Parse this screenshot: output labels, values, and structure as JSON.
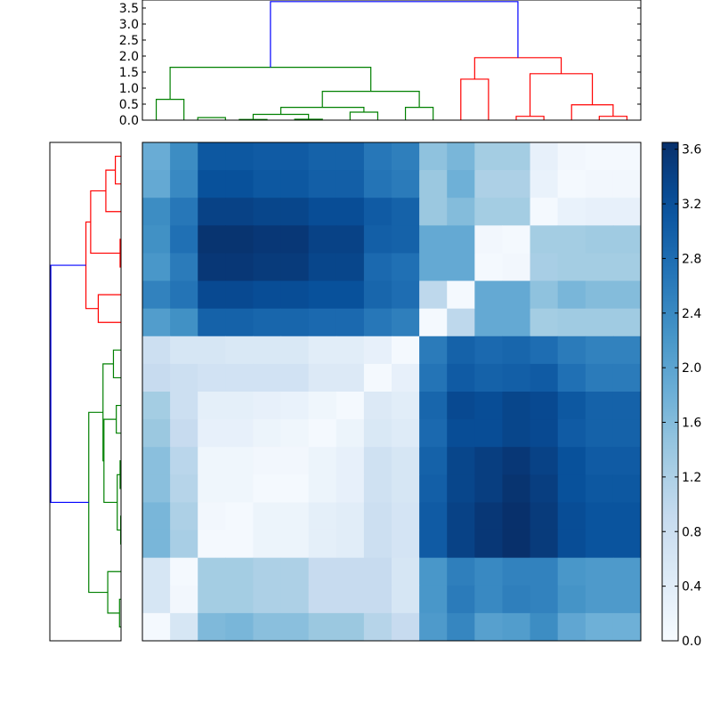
{
  "chart_data": {
    "type": "heatmap",
    "title": "",
    "xlabel": "",
    "ylabel": "",
    "colormap": "Blues",
    "n_rows": 18,
    "n_cols": 18,
    "values": [
      [
        1.85,
        2.35,
        3.1,
        3.1,
        3.05,
        3.05,
        2.95,
        2.95,
        2.65,
        2.55,
        1.5,
        1.7,
        1.3,
        1.3,
        0.3,
        0.1,
        0.05,
        0.05
      ],
      [
        1.9,
        2.4,
        3.2,
        3.2,
        3.1,
        3.1,
        3.0,
        3.0,
        2.7,
        2.6,
        1.4,
        1.8,
        1.2,
        1.2,
        0.25,
        0.05,
        0.1,
        0.1
      ],
      [
        2.35,
        2.65,
        3.4,
        3.4,
        3.35,
        3.35,
        3.25,
        3.25,
        3.05,
        2.95,
        1.4,
        1.6,
        1.3,
        1.3,
        0.05,
        0.25,
        0.3,
        0.3
      ],
      [
        2.3,
        2.75,
        3.6,
        3.6,
        3.55,
        3.55,
        3.4,
        3.4,
        3.0,
        2.95,
        1.9,
        1.9,
        0.1,
        0.05,
        1.3,
        1.3,
        1.35,
        1.35
      ],
      [
        2.2,
        2.6,
        3.55,
        3.55,
        3.5,
        3.5,
        3.35,
        3.35,
        2.85,
        2.75,
        1.9,
        1.9,
        0.05,
        0.1,
        1.25,
        1.3,
        1.3,
        1.3
      ],
      [
        2.5,
        2.7,
        3.3,
        3.3,
        3.25,
        3.25,
        3.2,
        3.2,
        2.9,
        2.8,
        1.0,
        0.05,
        1.9,
        1.9,
        1.5,
        1.7,
        1.6,
        1.6
      ],
      [
        2.1,
        2.3,
        2.95,
        2.95,
        2.9,
        2.9,
        2.85,
        2.85,
        2.65,
        2.55,
        0.05,
        1.0,
        1.9,
        1.9,
        1.3,
        1.35,
        1.35,
        1.35
      ],
      [
        0.8,
        0.6,
        0.6,
        0.55,
        0.55,
        0.55,
        0.4,
        0.4,
        0.3,
        0.05,
        2.6,
        2.95,
        2.85,
        2.9,
        2.8,
        2.6,
        2.5,
        2.5
      ],
      [
        0.9,
        0.8,
        0.7,
        0.7,
        0.7,
        0.7,
        0.5,
        0.5,
        0.05,
        0.3,
        2.7,
        3.05,
        2.95,
        3.0,
        3.05,
        2.75,
        2.6,
        2.6
      ],
      [
        1.3,
        0.8,
        0.35,
        0.35,
        0.3,
        0.25,
        0.15,
        0.05,
        0.5,
        0.4,
        2.9,
        3.3,
        3.25,
        3.35,
        3.3,
        3.1,
        2.95,
        2.95
      ],
      [
        1.4,
        0.9,
        0.3,
        0.3,
        0.2,
        0.15,
        0.05,
        0.2,
        0.55,
        0.45,
        2.85,
        3.25,
        3.25,
        3.35,
        3.3,
        3.05,
        2.95,
        2.95
      ],
      [
        1.55,
        1.05,
        0.15,
        0.15,
        0.1,
        0.1,
        0.2,
        0.3,
        0.75,
        0.6,
        2.95,
        3.35,
        3.45,
        3.55,
        3.4,
        3.2,
        3.05,
        3.05
      ],
      [
        1.55,
        1.1,
        0.15,
        0.15,
        0.05,
        0.05,
        0.2,
        0.3,
        0.75,
        0.6,
        3.0,
        3.35,
        3.45,
        3.6,
        3.45,
        3.2,
        3.1,
        3.1
      ],
      [
        1.7,
        1.2,
        0.1,
        0.05,
        0.2,
        0.2,
        0.35,
        0.4,
        0.8,
        0.65,
        3.05,
        3.4,
        3.55,
        3.65,
        3.5,
        3.25,
        3.15,
        3.15
      ],
      [
        1.7,
        1.25,
        0.05,
        0.05,
        0.2,
        0.2,
        0.35,
        0.4,
        0.8,
        0.65,
        3.05,
        3.4,
        3.55,
        3.65,
        3.5,
        3.25,
        3.15,
        3.15
      ],
      [
        0.6,
        0.05,
        1.3,
        1.3,
        1.2,
        1.2,
        0.9,
        0.9,
        0.9,
        0.6,
        2.2,
        2.55,
        2.4,
        2.5,
        2.5,
        2.2,
        2.15,
        2.15
      ],
      [
        0.6,
        0.1,
        1.3,
        1.3,
        1.2,
        1.2,
        0.9,
        0.9,
        0.9,
        0.6,
        2.2,
        2.6,
        2.4,
        2.55,
        2.5,
        2.25,
        2.15,
        2.15
      ],
      [
        0.05,
        0.6,
        1.65,
        1.7,
        1.55,
        1.55,
        1.4,
        1.4,
        1.1,
        0.9,
        2.15,
        2.45,
        2.05,
        2.1,
        2.35,
        1.95,
        1.8,
        1.8
      ]
    ],
    "colorbar": {
      "vmin": 0.0,
      "vmax": 3.65,
      "ticks": [
        "0.0",
        "0.4",
        "0.8",
        "1.2",
        "1.6",
        "2.0",
        "2.4",
        "2.8",
        "3.2",
        "3.6"
      ],
      "tick_values": [
        0.0,
        0.4,
        0.8,
        1.2,
        1.6,
        2.0,
        2.4,
        2.8,
        3.2,
        3.6
      ]
    },
    "top_dendrogram": {
      "orientation": "top",
      "ylim": [
        0,
        3.75
      ],
      "y_ticks": [
        "0.0",
        "0.5",
        "1.0",
        "1.5",
        "2.0",
        "2.5",
        "3.0",
        "3.5"
      ],
      "y_tick_values": [
        0.0,
        0.5,
        1.0,
        1.5,
        2.0,
        2.5,
        3.0,
        3.5
      ],
      "links": [
        {
          "color": "#008000",
          "x1": 0.5,
          "x2": 1.5,
          "h": 0.65,
          "y1": 0,
          "y2": 0
        },
        {
          "color": "#008000",
          "x1": 2.0,
          "x2": 3.0,
          "h": 0.08,
          "y1": 0,
          "y2": 0
        },
        {
          "color": "#008000",
          "x1": 3.5,
          "x2": 4.5,
          "h": 0.02,
          "y1": 0,
          "y2": 0
        },
        {
          "color": "#008000",
          "x1": 4.0,
          "x2": 6.0,
          "h": 0.18,
          "y1": 0.02,
          "y2": 0
        },
        {
          "color": "#008000",
          "x1": 5.5,
          "x2": 6.5,
          "h": 0.03,
          "y1": 0,
          "y2": 0
        },
        {
          "color": "#008000",
          "x1": 5.0,
          "x2": 8.0,
          "h": 0.4,
          "y1": 0.18,
          "y2": 0.25
        },
        {
          "color": "#008000",
          "x1": 7.5,
          "x2": 8.5,
          "h": 0.25,
          "y1": 0,
          "y2": 0
        },
        {
          "color": "#008000",
          "x1": 9.5,
          "x2": 10.5,
          "h": 0.4,
          "y1": 0,
          "y2": 0
        },
        {
          "color": "#008000",
          "x1": 6.5,
          "x2": 10.0,
          "h": 0.9,
          "y1": 0.4,
          "y2": 0.4
        },
        {
          "color": "#008000",
          "x1": 1.0,
          "x2": 8.25,
          "h": 1.65,
          "y1": 0.65,
          "y2": 0.9
        },
        {
          "color": "#ff0000",
          "x1": 11.5,
          "x2": 12.5,
          "h": 1.28,
          "y1": 0,
          "y2": 0
        },
        {
          "color": "#ff0000",
          "x1": 13.5,
          "x2": 14.5,
          "h": 0.12,
          "y1": 0,
          "y2": 0
        },
        {
          "color": "#ff0000",
          "x1": 16.5,
          "x2": 17.5,
          "h": 0.12,
          "y1": 0,
          "y2": 0
        },
        {
          "color": "#ff0000",
          "x1": 15.5,
          "x2": 17.0,
          "h": 0.48,
          "y1": 0,
          "y2": 0.12
        },
        {
          "color": "#ff0000",
          "x1": 14.0,
          "x2": 16.25,
          "h": 1.45,
          "y1": 0.12,
          "y2": 0.48
        },
        {
          "color": "#ff0000",
          "x1": 12.0,
          "x2": 15.125,
          "h": 1.95,
          "y1": 1.28,
          "y2": 1.45
        },
        {
          "color": "#0000ff",
          "x1": 4.625,
          "x2": 13.5625,
          "h": 3.7,
          "y1": 1.65,
          "y2": 1.95
        }
      ]
    },
    "left_dendrogram": {
      "orientation": "left",
      "hmax": 3.75,
      "links": [
        {
          "color": "#ff0000",
          "r1": 0.5,
          "r2": 1.5,
          "h": 0.3,
          "d1": 0,
          "d2": 0
        },
        {
          "color": "#ff0000",
          "r1": 1.0,
          "r2": 2.5,
          "h": 0.8,
          "d1": 0.3,
          "d2": 0
        },
        {
          "color": "#ff0000",
          "r1": 3.5,
          "r2": 4.5,
          "h": 0.05,
          "d1": 0,
          "d2": 0
        },
        {
          "color": "#ff0000",
          "r1": 1.75,
          "r2": 4.0,
          "h": 1.6,
          "d1": 0.8,
          "d2": 0.05
        },
        {
          "color": "#ff0000",
          "r1": 5.5,
          "r2": 6.5,
          "h": 1.2,
          "d1": 0,
          "d2": 0
        },
        {
          "color": "#ff0000",
          "r1": 2.875,
          "r2": 6.0,
          "h": 1.85,
          "d1": 1.6,
          "d2": 1.2
        },
        {
          "color": "#008000",
          "r1": 7.5,
          "r2": 8.5,
          "h": 0.4,
          "d1": 0,
          "d2": 0
        },
        {
          "color": "#008000",
          "r1": 9.5,
          "r2": 10.5,
          "h": 0.25,
          "d1": 0,
          "d2": 0
        },
        {
          "color": "#008000",
          "r1": 11.5,
          "r2": 12.5,
          "h": 0.05,
          "d1": 0,
          "d2": 0
        },
        {
          "color": "#008000",
          "r1": 13.5,
          "r2": 14.5,
          "h": 0.02,
          "d1": 0,
          "d2": 0
        },
        {
          "color": "#008000",
          "r1": 12.0,
          "r2": 14.0,
          "h": 0.2,
          "d1": 0.05,
          "d2": 0.02
        },
        {
          "color": "#008000",
          "r1": 10.0,
          "r2": 13.0,
          "h": 0.9,
          "d1": 0.25,
          "d2": 0.2
        },
        {
          "color": "#008000",
          "r1": 8.0,
          "r2": 11.5,
          "h": 0.95,
          "d1": 0.4,
          "d2": 0.9
        },
        {
          "color": "#008000",
          "r1": 16.5,
          "r2": 17.5,
          "h": 0.08,
          "d1": 0,
          "d2": 0
        },
        {
          "color": "#008000",
          "r1": 15.5,
          "r2": 17.0,
          "h": 0.7,
          "d1": 0,
          "d2": 0.08
        },
        {
          "color": "#008000",
          "r1": 9.75,
          "r2": 16.25,
          "h": 1.7,
          "d1": 0.95,
          "d2": 0.7
        },
        {
          "color": "#0000ff",
          "r1": 4.4375,
          "r2": 13.0,
          "h": 3.7,
          "d1": 1.85,
          "d2": 1.7
        }
      ]
    }
  }
}
